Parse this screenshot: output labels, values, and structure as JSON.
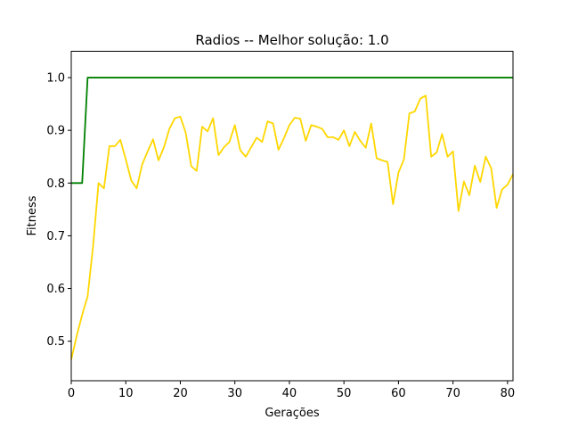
{
  "chart_data": {
    "type": "line",
    "title": "Radios -- Melhor solução: 1.0",
    "xlabel": "Gerações",
    "ylabel": "Fitness",
    "xlim": [
      0,
      81
    ],
    "ylim": [
      0.425,
      1.05
    ],
    "xticks": [
      0,
      10,
      20,
      30,
      40,
      50,
      60,
      70,
      80
    ],
    "yticks": [
      0.5,
      0.6,
      0.7,
      0.8,
      0.9,
      1.0
    ],
    "ytick_labels": [
      "0.5",
      "0.6",
      "0.7",
      "0.8",
      "0.9",
      "1.0"
    ],
    "grid": false,
    "legend": "none",
    "series": [
      {
        "color": "#008000",
        "x": [
          0,
          1,
          2,
          3,
          4,
          81
        ],
        "y": [
          0.8,
          0.8,
          0.8,
          1.0,
          1.0,
          1.0
        ]
      },
      {
        "color": "#FFD700",
        "x": [
          0,
          1,
          2,
          3,
          4,
          5,
          6,
          7,
          8,
          9,
          10,
          11,
          12,
          13,
          14,
          15,
          16,
          17,
          18,
          19,
          20,
          21,
          22,
          23,
          24,
          25,
          26,
          27,
          28,
          29,
          30,
          31,
          32,
          33,
          34,
          35,
          36,
          37,
          38,
          39,
          40,
          41,
          42,
          43,
          44,
          45,
          46,
          47,
          48,
          49,
          50,
          51,
          52,
          53,
          54,
          55,
          56,
          57,
          58,
          59,
          60,
          61,
          62,
          63,
          64,
          65,
          66,
          67,
          68,
          69,
          70,
          71,
          72,
          73,
          74,
          75,
          76,
          77,
          78,
          79,
          80,
          81
        ],
        "y": [
          0.465,
          0.51,
          0.55,
          0.585,
          0.68,
          0.8,
          0.79,
          0.87,
          0.87,
          0.882,
          0.845,
          0.805,
          0.79,
          0.835,
          0.86,
          0.883,
          0.843,
          0.868,
          0.903,
          0.923,
          0.926,
          0.895,
          0.832,
          0.823,
          0.907,
          0.898,
          0.923,
          0.853,
          0.868,
          0.878,
          0.91,
          0.862,
          0.85,
          0.868,
          0.886,
          0.878,
          0.917,
          0.913,
          0.863,
          0.885,
          0.91,
          0.924,
          0.922,
          0.88,
          0.91,
          0.907,
          0.903,
          0.887,
          0.887,
          0.882,
          0.9,
          0.87,
          0.897,
          0.88,
          0.867,
          0.913,
          0.847,
          0.843,
          0.84,
          0.76,
          0.82,
          0.845,
          0.932,
          0.936,
          0.96,
          0.966,
          0.85,
          0.858,
          0.893,
          0.85,
          0.86,
          0.747,
          0.803,
          0.777,
          0.833,
          0.802,
          0.85,
          0.828,
          0.753,
          0.788,
          0.797,
          0.817
        ]
      }
    ]
  }
}
